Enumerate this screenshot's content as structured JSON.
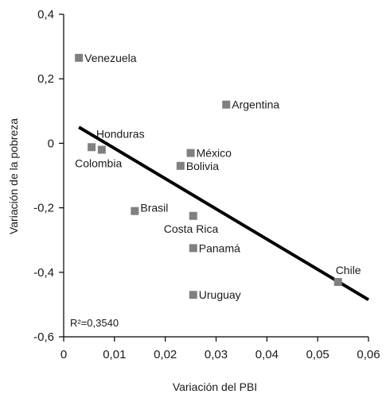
{
  "chart_data": {
    "type": "scatter",
    "title": "",
    "xlabel": "Variación del PBI",
    "ylabel": "Variación de la pobreza",
    "xlim": [
      0,
      0.06
    ],
    "ylim": [
      -0.6,
      0.4
    ],
    "x_ticks": [
      0,
      0.01,
      0.02,
      0.03,
      0.04,
      0.05,
      0.06
    ],
    "x_tick_labels": [
      "0",
      "0,01",
      "0,02",
      "0,03",
      "0,04",
      "0,05",
      "0,06"
    ],
    "y_ticks": [
      0.4,
      0.2,
      0,
      -0.2,
      -0.4,
      -0.6
    ],
    "y_tick_labels": [
      "0,4",
      "0,2",
      "0",
      "-0,2",
      "-0,4",
      "-0,6"
    ],
    "grid": false,
    "legend": "none",
    "marker_color": "#808080",
    "line_color": "#000000",
    "points": [
      {
        "label": "Venezuela",
        "x": 0.003,
        "y": 0.265
      },
      {
        "label": "Argentina",
        "x": 0.032,
        "y": 0.12
      },
      {
        "label": "Honduras",
        "x": 0.0075,
        "y": -0.02
      },
      {
        "label": "Colombia",
        "x": 0.0055,
        "y": -0.012
      },
      {
        "label": "México",
        "x": 0.025,
        "y": -0.03
      },
      {
        "label": "Bolivia",
        "x": 0.023,
        "y": -0.07
      },
      {
        "label": "Brasil",
        "x": 0.014,
        "y": -0.21
      },
      {
        "label": "Costa Rica",
        "x": 0.0255,
        "y": -0.225
      },
      {
        "label": "Panamá",
        "x": 0.0255,
        "y": -0.325
      },
      {
        "label": "Chile",
        "x": 0.054,
        "y": -0.43
      },
      {
        "label": "Uruguay",
        "x": 0.0255,
        "y": -0.47
      }
    ],
    "trendline": {
      "x": [
        0.003,
        0.06
      ],
      "y": [
        0.05,
        -0.485
      ]
    },
    "annotation": "R²=0,3540"
  }
}
